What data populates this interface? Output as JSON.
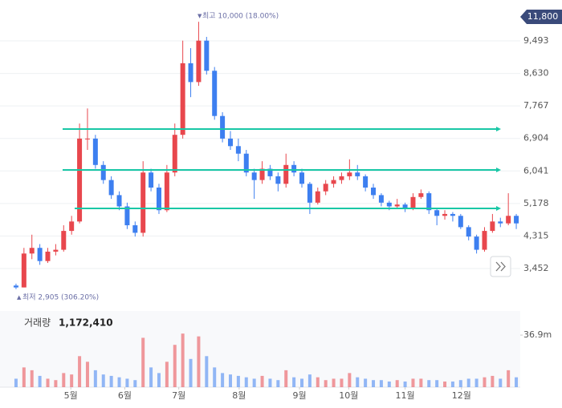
{
  "chart_data": {
    "type": "candlestick",
    "annotations": {
      "high": "최고 10,000 (18.00%)",
      "low": "최저 2,905 (306.20%)"
    },
    "price_tag": "11,800",
    "volume_title": "거래량",
    "volume_value": "1,172,410",
    "up_color": "#e8474d",
    "down_color": "#3d7ff0",
    "line_color": "#19c7a6",
    "xlim": [
      0,
      64
    ],
    "xticks": [
      {
        "value": 7.4,
        "label": "5월"
      },
      {
        "value": 14.2,
        "label": "6월"
      },
      {
        "value": 21.0,
        "label": "7월"
      },
      {
        "value": 28.6,
        "label": "8월"
      },
      {
        "value": 36.2,
        "label": "9월"
      },
      {
        "value": 42.4,
        "label": "10월"
      },
      {
        "value": 49.5,
        "label": "11월"
      },
      {
        "value": 56.6,
        "label": "12월"
      }
    ],
    "ylim": [
      2601,
      10578
    ],
    "yticks": [
      {
        "value": 9493,
        "label": "9,493"
      },
      {
        "value": 8630,
        "label": "8,630"
      },
      {
        "value": 7767,
        "label": "7,767"
      },
      {
        "value": 6904,
        "label": "6,904"
      },
      {
        "value": 6041,
        "label": "6,041"
      },
      {
        "value": 5178,
        "label": "5,178"
      },
      {
        "value": 4315,
        "label": "4,315"
      },
      {
        "value": 3452,
        "label": "3,452"
      }
    ],
    "grid": true,
    "trend_lines": [
      7153,
      6068,
      5047
    ],
    "vlim": [
      0,
      54
    ],
    "vticks": [
      {
        "value": 36.9,
        "label": "36.9m"
      }
    ],
    "ohlc": [
      [
        3000,
        3050,
        2905,
        2950
      ],
      [
        2950,
        4000,
        2950,
        3850
      ],
      [
        3850,
        4350,
        3700,
        4000
      ],
      [
        4000,
        4100,
        3550,
        3650
      ],
      [
        3650,
        4000,
        3600,
        3900
      ],
      [
        3900,
        4100,
        3800,
        3950
      ],
      [
        3950,
        4600,
        3900,
        4450
      ],
      [
        4450,
        4850,
        4350,
        4700
      ],
      [
        4700,
        7300,
        4650,
        6900
      ],
      [
        6900,
        7700,
        6600,
        6900
      ],
      [
        6900,
        7000,
        6100,
        6200
      ],
      [
        6200,
        6300,
        5700,
        5800
      ],
      [
        5800,
        5900,
        5300,
        5400
      ],
      [
        5400,
        5500,
        5000,
        5100
      ],
      [
        5100,
        5200,
        4500,
        4600
      ],
      [
        4600,
        4700,
        4300,
        4400
      ],
      [
        4400,
        6300,
        4300,
        6000
      ],
      [
        6000,
        6100,
        5500,
        5600
      ],
      [
        5600,
        5700,
        4900,
        5000
      ],
      [
        5000,
        6200,
        4950,
        6000
      ],
      [
        6000,
        7300,
        5900,
        7000
      ],
      [
        7000,
        9500,
        6900,
        8900
      ],
      [
        8900,
        9300,
        8000,
        8400
      ],
      [
        8400,
        10000,
        8300,
        9500
      ],
      [
        9500,
        9600,
        8600,
        8700
      ],
      [
        8700,
        8800,
        7400,
        7500
      ],
      [
        7500,
        7600,
        6800,
        6900
      ],
      [
        6900,
        7100,
        6600,
        6700
      ],
      [
        6700,
        6900,
        6300,
        6500
      ],
      [
        6500,
        6600,
        5900,
        6000
      ],
      [
        6000,
        6100,
        5300,
        5800
      ],
      [
        5800,
        6300,
        5700,
        6100
      ],
      [
        6100,
        6200,
        5800,
        5900
      ],
      [
        5900,
        6000,
        5500,
        5700
      ],
      [
        5700,
        6500,
        5600,
        6200
      ],
      [
        6200,
        6300,
        5900,
        6000
      ],
      [
        6000,
        6100,
        5600,
        5700
      ],
      [
        5700,
        5750,
        4900,
        5200
      ],
      [
        5200,
        5600,
        5150,
        5500
      ],
      [
        5500,
        5800,
        5400,
        5700
      ],
      [
        5700,
        5900,
        5600,
        5800
      ],
      [
        5800,
        6000,
        5700,
        5900
      ],
      [
        5900,
        6350,
        5800,
        6000
      ],
      [
        6000,
        6200,
        5800,
        5900
      ],
      [
        5900,
        5950,
        5500,
        5600
      ],
      [
        5600,
        5700,
        5300,
        5400
      ],
      [
        5400,
        5450,
        5100,
        5200
      ],
      [
        5200,
        5250,
        5000,
        5100
      ],
      [
        5100,
        5300,
        5050,
        5150
      ],
      [
        5150,
        5200,
        4950,
        5050
      ],
      [
        5050,
        5450,
        5000,
        5350
      ],
      [
        5350,
        5550,
        5300,
        5450
      ],
      [
        5450,
        5500,
        4900,
        5000
      ],
      [
        5000,
        5050,
        4600,
        4850
      ],
      [
        4850,
        5000,
        4750,
        4900
      ],
      [
        4900,
        4950,
        4700,
        4850
      ],
      [
        4850,
        4900,
        4500,
        4550
      ],
      [
        4550,
        4600,
        4200,
        4300
      ],
      [
        4300,
        4350,
        3850,
        3950
      ],
      [
        3950,
        4550,
        3900,
        4450
      ],
      [
        4450,
        4900,
        4400,
        4700
      ],
      [
        4700,
        4800,
        4550,
        4650
      ],
      [
        4650,
        5450,
        4600,
        4850
      ],
      [
        4850,
        4900,
        4500,
        4650
      ]
    ],
    "volume": [
      6,
      14,
      12,
      8,
      6,
      5,
      10,
      9,
      22,
      18,
      12,
      9,
      8,
      7,
      6,
      5,
      35,
      14,
      10,
      18,
      30,
      38,
      20,
      36,
      22,
      14,
      10,
      9,
      8,
      7,
      6,
      8,
      6,
      5,
      12,
      7,
      6,
      9,
      7,
      5,
      6,
      6,
      10,
      7,
      6,
      5,
      5,
      4,
      5,
      4,
      6,
      6,
      5,
      5,
      4,
      4,
      5,
      6,
      6,
      7,
      8,
      6,
      12,
      7
    ]
  }
}
